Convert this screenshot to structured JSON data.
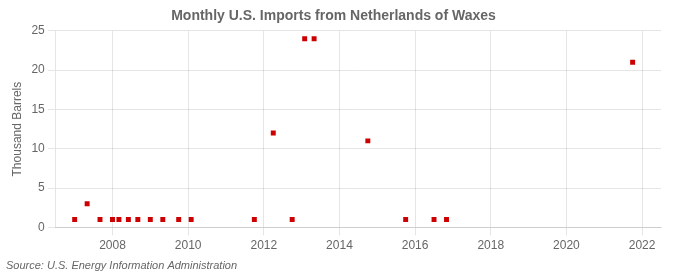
{
  "chart_data": {
    "type": "scatter",
    "title": "Monthly U.S. Imports from Netherlands of Waxes",
    "ylabel": "Thousand Barrels",
    "annotations": [
      "Source: U.S. Energy Information Administration"
    ],
    "x": [
      2007.0,
      2007.33,
      2007.67,
      2008.0,
      2008.17,
      2008.42,
      2008.67,
      2009.0,
      2009.33,
      2009.75,
      2010.08,
      2011.75,
      2012.25,
      2012.75,
      2013.08,
      2013.33,
      2014.75,
      2015.75,
      2016.5,
      2016.83,
      2021.75
    ],
    "values": [
      1,
      3,
      1,
      1,
      1,
      1,
      1,
      1,
      1,
      1,
      1,
      1,
      12,
      1,
      24,
      24,
      11,
      1,
      1,
      1,
      21
    ],
    "color": "#cc0000",
    "marker": "square",
    "xlim": [
      2006.5,
      2022.5
    ],
    "ylim": [
      0,
      25
    ],
    "xticks": [
      2008,
      2010,
      2012,
      2014,
      2016,
      2018,
      2020,
      2022
    ],
    "yticks": [
      0,
      5,
      10,
      15,
      20,
      25
    ],
    "grid": true
  }
}
